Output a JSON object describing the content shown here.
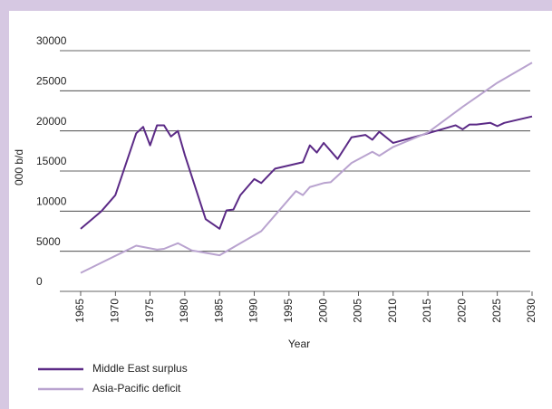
{
  "chart_data": {
    "type": "line",
    "x_label": "Year",
    "y_label": "000 b/d",
    "xlim": [
      1962,
      2030
    ],
    "xticks": [
      1965,
      1970,
      1975,
      1980,
      1985,
      1990,
      1995,
      2000,
      2005,
      2010,
      2015,
      2020,
      2025,
      2030
    ],
    "ylim": [
      0,
      30000
    ],
    "yticks": [
      0,
      5000,
      10000,
      15000,
      20000,
      25000,
      30000
    ],
    "grid": true,
    "series": [
      {
        "name": "Middle East surplus",
        "color": "#5b2a86",
        "x": [
          1965,
          1968,
          1970,
          1973,
          1974,
          1975,
          1976,
          1977,
          1978,
          1979,
          1980,
          1983,
          1985,
          1986,
          1987,
          1988,
          1990,
          1991,
          1993,
          1997,
          1998,
          1999,
          2000,
          2002,
          2004,
          2006,
          2007,
          2008,
          2010,
          2015,
          2019,
          2020,
          2021,
          2022,
          2024,
          2025,
          2026,
          2030
        ],
        "values": [
          7800,
          10000,
          12000,
          19700,
          20500,
          18200,
          20700,
          20700,
          19300,
          20000,
          17000,
          9000,
          7800,
          10100,
          10200,
          12000,
          14000,
          13500,
          15300,
          16100,
          18200,
          17300,
          18500,
          16500,
          19200,
          19500,
          18900,
          19900,
          18500,
          19700,
          20700,
          20200,
          20800,
          20800,
          21000,
          20600,
          21000,
          21800
        ]
      },
      {
        "name": "Asia-Pacific deficit",
        "color": "#b9a3cf",
        "x": [
          1965,
          1973,
          1976,
          1977,
          1979,
          1981,
          1985,
          1989,
          1991,
          1996,
          1997,
          1998,
          2000,
          2001,
          2004,
          2007,
          2008,
          2010,
          2015,
          2020,
          2025,
          2030
        ],
        "values": [
          2300,
          5700,
          5200,
          5300,
          6000,
          5100,
          4500,
          6500,
          7500,
          12500,
          12000,
          13000,
          13500,
          13600,
          16000,
          17400,
          16900,
          18000,
          19800,
          23000,
          26000,
          28500
        ]
      }
    ]
  }
}
